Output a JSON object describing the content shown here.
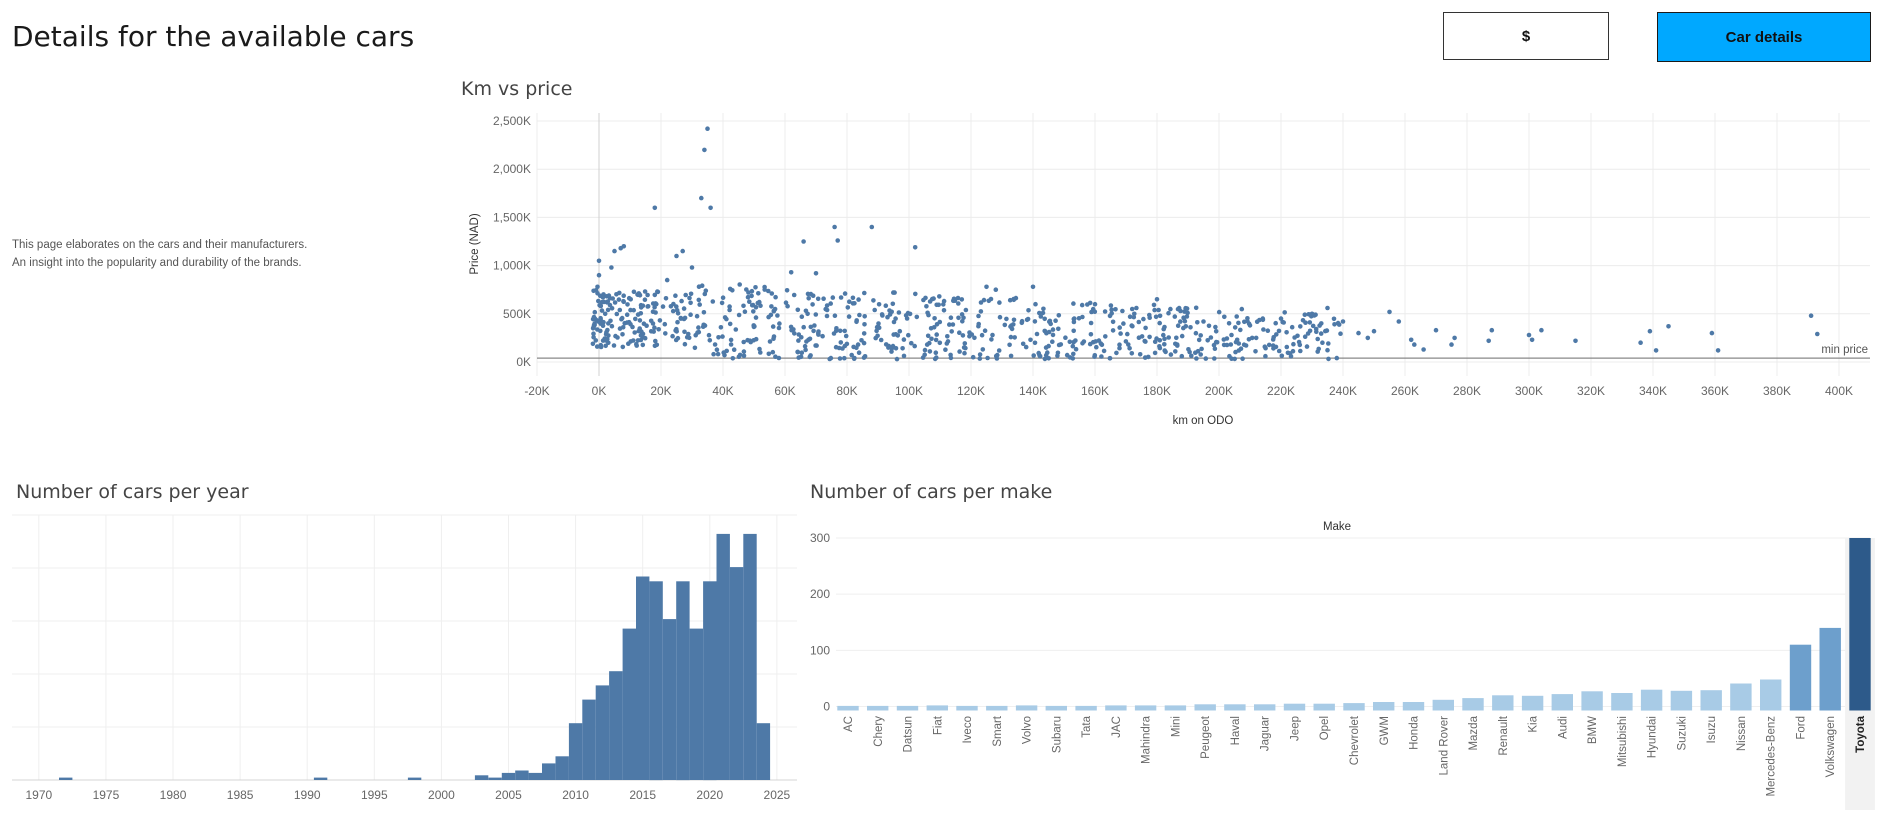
{
  "header": {
    "title": "Details for the available cars",
    "currency_label": "$",
    "details_label": "Car details"
  },
  "description": {
    "line1": "This page elaborates on the cars and their manufacturers.",
    "line2": "An insight into the popularity and durability of the brands."
  },
  "chart_data": [
    {
      "type": "scatter",
      "title": "Km vs price",
      "xlabel": "km on ODO",
      "ylabel": "Price (NAD)",
      "xlim": [
        -20000,
        410000
      ],
      "ylim": [
        0,
        2500000
      ],
      "x_ticks": [
        "-20K",
        "0K",
        "20K",
        "40K",
        "60K",
        "80K",
        "100K",
        "120K",
        "140K",
        "160K",
        "180K",
        "200K",
        "220K",
        "240K",
        "260K",
        "280K",
        "300K",
        "320K",
        "340K",
        "360K",
        "380K",
        "400K"
      ],
      "y_ticks": [
        "0K",
        "500K",
        "1,000K",
        "1,500K",
        "2,000K",
        "2,500K"
      ],
      "reference_line": {
        "label": "min price",
        "value": 40000
      },
      "color": "#4e79a7",
      "grid": true,
      "points": [
        [
          0,
          900000
        ],
        [
          0,
          1050000
        ],
        [
          1000,
          620000
        ],
        [
          2000,
          500000
        ],
        [
          -500,
          780000
        ],
        [
          3000,
          400000
        ],
        [
          5000,
          1150000
        ],
        [
          7000,
          1180000
        ],
        [
          8000,
          1200000
        ],
        [
          4000,
          980000
        ],
        [
          18000,
          1600000
        ],
        [
          25000,
          1100000
        ],
        [
          27000,
          1150000
        ],
        [
          22000,
          850000
        ],
        [
          30000,
          980000
        ],
        [
          33000,
          1700000
        ],
        [
          34000,
          2200000
        ],
        [
          35000,
          2420000
        ],
        [
          36000,
          1600000
        ],
        [
          66000,
          1250000
        ],
        [
          76000,
          1400000
        ],
        [
          77000,
          1260000
        ],
        [
          88000,
          1400000
        ],
        [
          102000,
          1190000
        ],
        [
          70000,
          920000
        ],
        [
          62000,
          930000
        ],
        [
          128000,
          750000
        ],
        [
          140000,
          780000
        ],
        [
          125000,
          780000
        ],
        [
          180000,
          650000
        ],
        [
          160000,
          600000
        ],
        [
          172000,
          550000
        ],
        [
          195000,
          420000
        ],
        [
          210000,
          380000
        ],
        [
          220000,
          450000
        ],
        [
          230000,
          500000
        ],
        [
          235000,
          560000
        ],
        [
          240000,
          420000
        ],
        [
          245000,
          300000
        ],
        [
          248000,
          250000
        ],
        [
          250000,
          320000
        ],
        [
          238000,
          40000
        ],
        [
          255000,
          520000
        ],
        [
          258000,
          420000
        ],
        [
          262000,
          230000
        ],
        [
          263000,
          180000
        ],
        [
          266000,
          130000
        ],
        [
          270000,
          330000
        ],
        [
          275000,
          180000
        ],
        [
          276000,
          250000
        ],
        [
          287000,
          220000
        ],
        [
          288000,
          330000
        ],
        [
          300000,
          280000
        ],
        [
          301000,
          230000
        ],
        [
          304000,
          330000
        ],
        [
          315000,
          220000
        ],
        [
          336000,
          200000
        ],
        [
          339000,
          320000
        ],
        [
          341000,
          120000
        ],
        [
          345000,
          370000
        ],
        [
          359000,
          300000
        ],
        [
          361000,
          120000
        ],
        [
          391000,
          480000
        ],
        [
          393000,
          290000
        ]
      ],
      "dense_region": {
        "x_range": [
          -2000,
          240000
        ],
        "y_range": [
          0,
          850000
        ],
        "count": 820
      }
    },
    {
      "type": "bar",
      "title": "Number of cars per year",
      "x_ticks": [
        "1970",
        "1975",
        "1980",
        "1985",
        "1990",
        "1995",
        "2000",
        "2005",
        "2010",
        "2015",
        "2020",
        "2025"
      ],
      "xlim": [
        1968,
        2026.5
      ],
      "ylim": [
        0,
        56
      ],
      "color": "#4e79a7",
      "categories": [
        1972,
        1991,
        1998,
        2003,
        2004,
        2005,
        2006,
        2007,
        2008,
        2009,
        2010,
        2011,
        2012,
        2013,
        2014,
        2015,
        2016,
        2017,
        2018,
        2019,
        2020,
        2021,
        2022,
        2023,
        2024
      ],
      "values": [
        0.5,
        0.5,
        0.5,
        1,
        0.5,
        1.5,
        2,
        1.5,
        3.5,
        5,
        12,
        17,
        20,
        23,
        32,
        43,
        42,
        34,
        42,
        32,
        42,
        52,
        45,
        52,
        12
      ]
    },
    {
      "type": "bar",
      "title": "Number of cars per make",
      "header": "Make",
      "ylim": [
        -8,
        300
      ],
      "y_ticks": [
        "0",
        "100",
        "200",
        "300"
      ],
      "highlight": "Toyota",
      "colors": {
        "low": "#a8cbe6",
        "mid": "#6d9fcc",
        "high": "#2d5a8a"
      },
      "categories": [
        "AC",
        "Chery",
        "Datsun",
        "Fiat",
        "Iveco",
        "Smart",
        "Volvo",
        "Subaru",
        "Tata",
        "JAC",
        "Mahindra",
        "Mini",
        "Peugeot",
        "Haval",
        "Jaguar",
        "Jeep",
        "Opel",
        "Chevrolet",
        "GWM",
        "Honda",
        "Land Rover",
        "Mazda",
        "Renault",
        "Kia",
        "Audi",
        "BMW",
        "Mitsubishi",
        "Hyundai",
        "Suzuki",
        "Isuzu",
        "Nissan",
        "Mercedes-Benz",
        "Ford",
        "Volkswagen",
        "Toyota"
      ],
      "values": [
        1,
        1,
        1,
        2,
        1,
        1,
        2,
        1,
        1,
        2,
        2,
        2,
        4,
        4,
        4,
        5,
        5,
        6,
        8,
        8,
        12,
        15,
        20,
        19,
        22,
        27,
        24,
        30,
        28,
        29,
        41,
        48,
        110,
        140,
        300
      ]
    }
  ]
}
